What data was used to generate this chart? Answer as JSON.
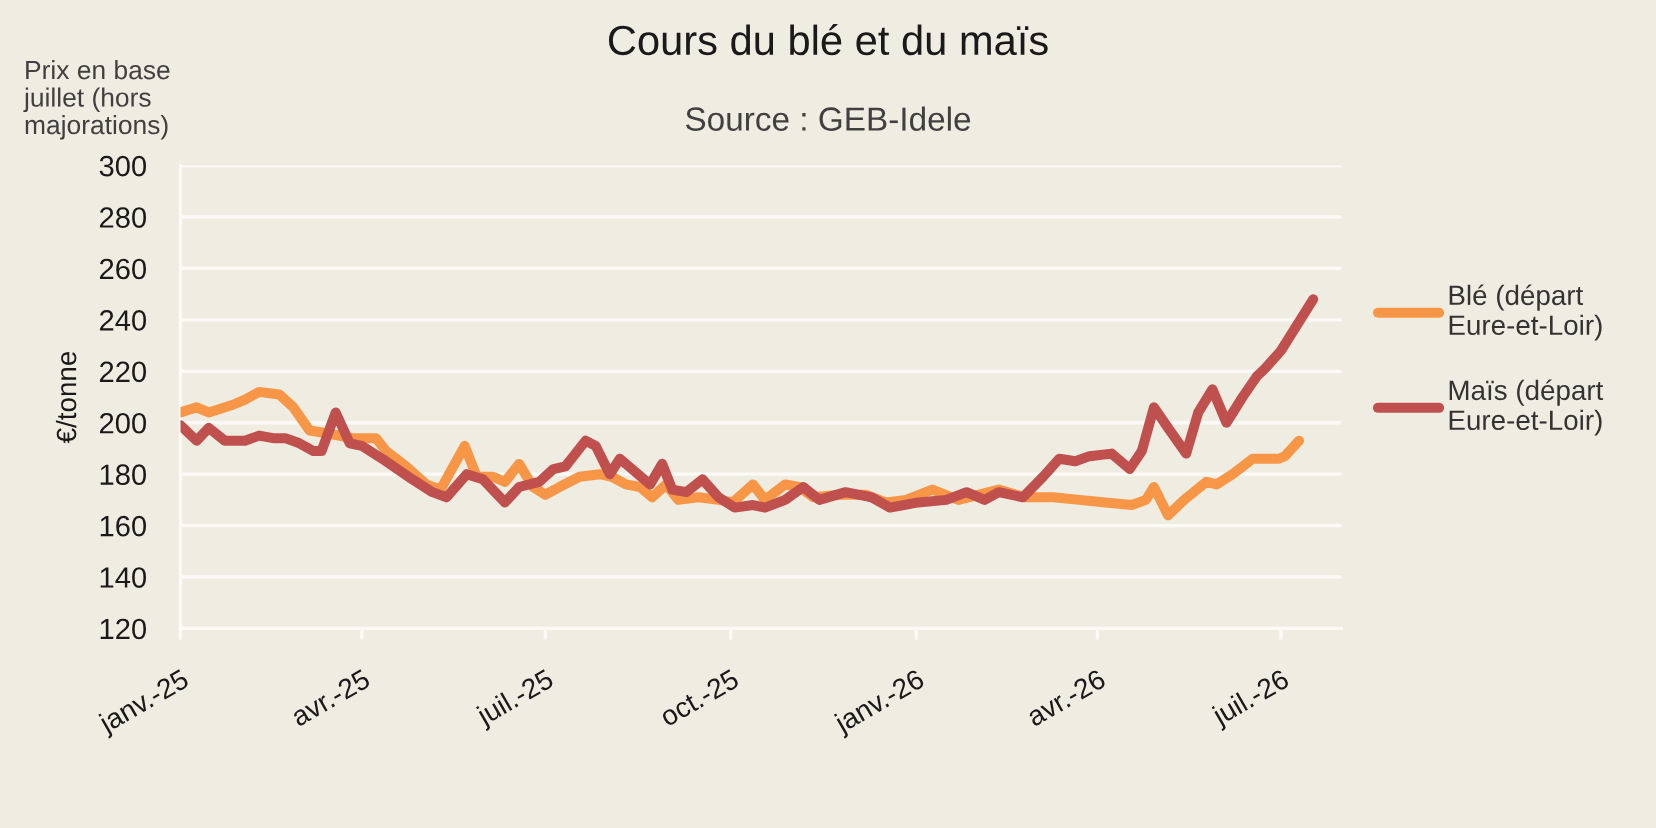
{
  "chart_data": {
    "type": "line",
    "title": "Cours du blé et du maïs",
    "subtitle": "Source : GEB-Idele",
    "ylabel": "€/tonne",
    "annotations": [
      "Prix en base juillet (hors majorations)"
    ],
    "xlim": [
      "2025-01-01",
      "2026-07-31"
    ],
    "xticks": [
      {
        "value": "2025-01-01",
        "label": "janv.-25"
      },
      {
        "value": "2025-04-01",
        "label": "avr.-25"
      },
      {
        "value": "2025-07-01",
        "label": "juil.-25"
      },
      {
        "value": "2025-10-01",
        "label": "oct.-25"
      },
      {
        "value": "2026-01-01",
        "label": "janv.-26"
      },
      {
        "value": "2026-04-01",
        "label": "avr.-26"
      },
      {
        "value": "2026-07-01",
        "label": "juil.-26"
      }
    ],
    "ylim": [
      120,
      300
    ],
    "yticks": [
      120,
      140,
      160,
      180,
      200,
      220,
      240,
      260,
      280,
      300
    ],
    "grid": "y",
    "legend": "right",
    "line_style": "solid",
    "series": [
      {
        "name": "Blé (départ Eure-et-Loir)",
        "color": "#f79646",
        "x": [
          "2025-01-01",
          "2025-01-09",
          "2025-01-15",
          "2025-01-27",
          "2025-02-02",
          "2025-02-09",
          "2025-02-19",
          "2025-02-26",
          "2025-03-06",
          "2025-03-14",
          "2025-03-27",
          "2025-04-08",
          "2025-04-13",
          "2025-04-23",
          "2025-05-03",
          "2025-05-10",
          "2025-05-22",
          "2025-05-28",
          "2025-06-05",
          "2025-06-11",
          "2025-06-18",
          "2025-06-25",
          "2025-07-01",
          "2025-07-08",
          "2025-07-18",
          "2025-07-28",
          "2025-08-03",
          "2025-08-10",
          "2025-08-17",
          "2025-08-23",
          "2025-08-30",
          "2025-09-05",
          "2025-09-15",
          "2025-09-25",
          "2025-10-02",
          "2025-10-12",
          "2025-10-18",
          "2025-10-28",
          "2025-11-04",
          "2025-11-11",
          "2025-11-24",
          "2025-12-07",
          "2025-12-17",
          "2025-12-27",
          "2026-01-09",
          "2026-01-22",
          "2026-02-11",
          "2026-02-24",
          "2026-03-10",
          "2026-03-23",
          "2026-04-05",
          "2026-04-18",
          "2026-04-25",
          "2026-04-29",
          "2026-05-06",
          "2026-05-14",
          "2026-05-25",
          "2026-05-30",
          "2026-06-07",
          "2026-06-17",
          "2026-06-30",
          "2026-07-03",
          "2026-07-10"
        ],
        "values": [
          204,
          206,
          204,
          207,
          209,
          212,
          211,
          206,
          197,
          196,
          194,
          194,
          189,
          183,
          176,
          174,
          191,
          179,
          179,
          177,
          184,
          175,
          172,
          175,
          179,
          180,
          179,
          176,
          175,
          171,
          176,
          170,
          171,
          170,
          169,
          176,
          170,
          176,
          175,
          171,
          172,
          172,
          169,
          170,
          174,
          170,
          174,
          171,
          171,
          170,
          169,
          168,
          170,
          175,
          164,
          170,
          177,
          176,
          180,
          186,
          186,
          187,
          193
        ]
      },
      {
        "name": "Maïs (départ Eure-et-Loir)",
        "color": "#c0504d",
        "x": [
          "2025-01-01",
          "2025-01-09",
          "2025-01-15",
          "2025-01-23",
          "2025-02-02",
          "2025-02-09",
          "2025-02-16",
          "2025-02-22",
          "2025-03-01",
          "2025-03-08",
          "2025-03-12",
          "2025-03-19",
          "2025-03-26",
          "2025-04-01",
          "2025-04-13",
          "2025-04-26",
          "2025-05-06",
          "2025-05-13",
          "2025-05-23",
          "2025-05-31",
          "2025-06-11",
          "2025-06-18",
          "2025-06-28",
          "2025-07-05",
          "2025-07-11",
          "2025-07-21",
          "2025-07-26",
          "2025-08-02",
          "2025-08-07",
          "2025-08-13",
          "2025-08-22",
          "2025-08-28",
          "2025-09-02",
          "2025-09-09",
          "2025-09-17",
          "2025-09-25",
          "2025-10-03",
          "2025-10-12",
          "2025-10-18",
          "2025-10-28",
          "2025-11-06",
          "2025-11-14",
          "2025-11-27",
          "2025-12-10",
          "2025-12-19",
          "2026-01-02",
          "2026-01-16",
          "2026-01-26",
          "2026-02-04",
          "2026-02-11",
          "2026-02-23",
          "2026-03-05",
          "2026-03-13",
          "2026-03-21",
          "2026-03-28",
          "2026-04-08",
          "2026-04-17",
          "2026-04-23",
          "2026-04-29",
          "2026-05-06",
          "2026-05-15",
          "2026-05-21",
          "2026-05-28",
          "2026-06-04",
          "2026-06-12",
          "2026-06-19",
          "2026-06-23",
          "2026-07-01",
          "2026-07-17"
        ],
        "values": [
          199,
          193,
          198,
          193,
          193,
          195,
          194,
          194,
          192,
          189,
          189,
          204,
          192,
          191,
          185,
          178,
          173,
          171,
          180,
          178,
          169,
          175,
          177,
          182,
          183,
          193,
          191,
          180,
          186,
          182,
          176,
          184,
          174,
          173,
          178,
          171,
          167,
          168,
          167,
          170,
          175,
          170,
          173,
          171,
          167,
          169,
          170,
          173,
          170,
          173,
          171,
          179,
          186,
          185,
          187,
          188,
          182,
          189,
          206,
          198,
          188,
          204,
          213,
          200,
          210,
          218,
          221,
          228,
          248
        ]
      }
    ]
  }
}
